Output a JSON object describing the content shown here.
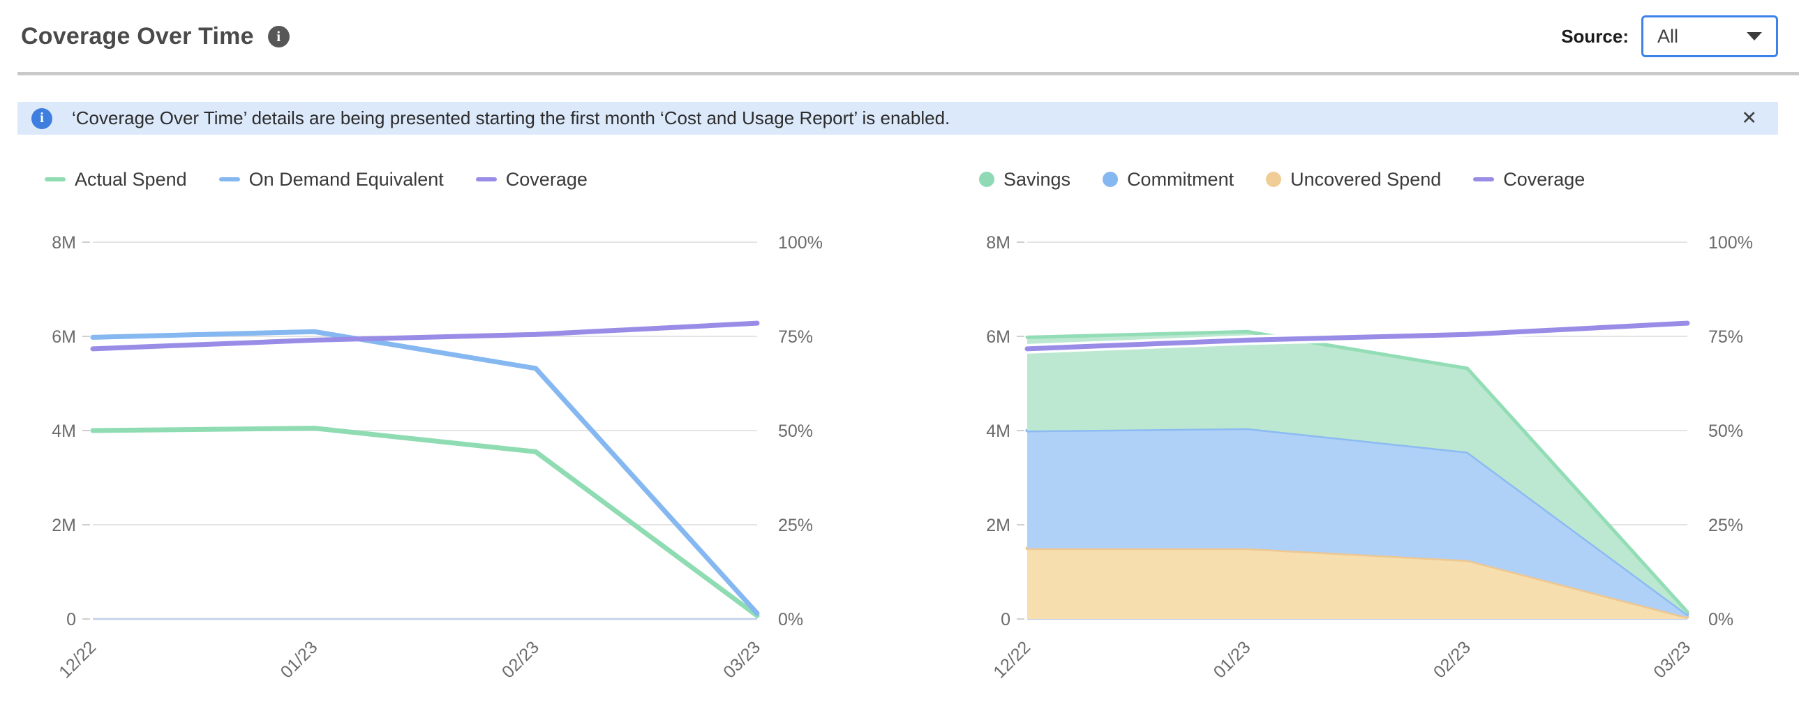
{
  "header": {
    "title": "Coverage Over Time",
    "source_label": "Source:",
    "source_value": "All"
  },
  "banner": {
    "text": "‘Coverage Over Time’ details are being presented starting the first month ‘Cost and Usage Report’ is enabled.",
    "close_glyph": "✕",
    "icon_glyph": "i"
  },
  "colors": {
    "grid": "#e4e4e4",
    "zero_axis": "#c3cfe9",
    "tick_mark": "#cfcfcf",
    "tick_text": "#6b6b6b",
    "legend_text": "#3a3a3a",
    "title_text": "#4a4a4a",
    "divider": "#c9c9c9",
    "banner_bg": "#dce9fb",
    "banner_icon": "#3e7edf",
    "accent_blue": "#3c82e8",
    "coverage_purple": "#998ce6",
    "spend_green": "#8fdcb3",
    "on_demand_blue": "#85b7f0",
    "uncovered_orange": "#f0cd97"
  },
  "chart_data": [
    {
      "type": "line",
      "categories": [
        "12/22",
        "01/23",
        "02/23",
        "03/23"
      ],
      "series": [
        {
          "name": "Actual Spend",
          "axis": "left",
          "color": "#8fdcb3",
          "halo": false,
          "values": [
            4.0,
            4.05,
            3.55,
            0.07
          ]
        },
        {
          "name": "On Demand Equivalent",
          "axis": "left",
          "color": "#85b7f0",
          "halo": false,
          "values": [
            5.98,
            6.1,
            5.32,
            0.12
          ]
        },
        {
          "name": "Coverage",
          "axis": "right",
          "color": "#998ce6",
          "halo": false,
          "values": [
            71.7,
            74.0,
            75.5,
            78.5
          ]
        }
      ],
      "y_left": {
        "min": 0,
        "max": 8,
        "unit": "M",
        "ticks": [
          {
            "v": 8,
            "label": "8M"
          },
          {
            "v": 6,
            "label": "6M"
          },
          {
            "v": 4,
            "label": "4M"
          },
          {
            "v": 2,
            "label": "2M"
          },
          {
            "v": 0,
            "label": "0"
          }
        ]
      },
      "y_right": {
        "min": 0,
        "max": 100,
        "unit": "%",
        "ticks": [
          {
            "v": 100,
            "label": "100%"
          },
          {
            "v": 75,
            "label": "75%"
          },
          {
            "v": 50,
            "label": "50%"
          },
          {
            "v": 25,
            "label": "25%"
          },
          {
            "v": 0,
            "label": "0%"
          }
        ]
      },
      "legend": [
        {
          "label": "Actual Spend",
          "color": "#8fdcb3",
          "shape": "line"
        },
        {
          "label": "On Demand Equivalent",
          "color": "#85b7f0",
          "shape": "line"
        },
        {
          "label": "Coverage",
          "color": "#998ce6",
          "shape": "line"
        }
      ]
    },
    {
      "type": "stacked_area",
      "categories": [
        "12/22",
        "01/23",
        "02/23",
        "03/23"
      ],
      "stacks": [
        {
          "name": "Uncovered Spend",
          "fill": "#f6deae",
          "edge": "#eec791",
          "values": [
            1.5,
            1.5,
            1.25,
            0.04
          ]
        },
        {
          "name": "Commitment",
          "fill": "#b0d1f7",
          "edge": "#8cbaf2",
          "values": [
            2.5,
            2.55,
            2.3,
            0.06
          ]
        },
        {
          "name": "Savings",
          "fill": "#bce8d1",
          "edge": "#93ddb6",
          "values": [
            1.98,
            2.05,
            1.77,
            0.05
          ]
        }
      ],
      "series": [
        {
          "name": "Coverage",
          "axis": "right",
          "color": "#998ce6",
          "halo": true,
          "values": [
            71.7,
            74.0,
            75.5,
            78.5
          ]
        }
      ],
      "y_left": {
        "min": 0,
        "max": 8,
        "unit": "M",
        "ticks": [
          {
            "v": 8,
            "label": "8M"
          },
          {
            "v": 6,
            "label": "6M"
          },
          {
            "v": 4,
            "label": "4M"
          },
          {
            "v": 2,
            "label": "2M"
          },
          {
            "v": 0,
            "label": "0"
          }
        ]
      },
      "y_right": {
        "min": 0,
        "max": 100,
        "unit": "%",
        "ticks": [
          {
            "v": 100,
            "label": "100%"
          },
          {
            "v": 75,
            "label": "75%"
          },
          {
            "v": 50,
            "label": "50%"
          },
          {
            "v": 25,
            "label": "25%"
          },
          {
            "v": 0,
            "label": "0%"
          }
        ]
      },
      "legend": [
        {
          "label": "Savings",
          "color": "#8fd9b5",
          "shape": "dot"
        },
        {
          "label": "Commitment",
          "color": "#85b7f0",
          "shape": "dot"
        },
        {
          "label": "Uncovered Spend",
          "color": "#f0cd97",
          "shape": "dot"
        },
        {
          "label": "Coverage",
          "color": "#998ce6",
          "shape": "line"
        }
      ]
    }
  ]
}
